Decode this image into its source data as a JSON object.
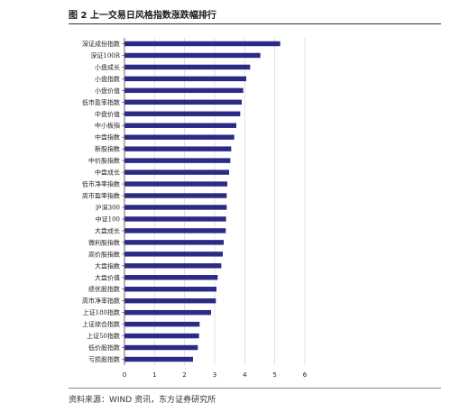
{
  "figure": {
    "title": "图 2 上一交易日风格指数涨跌幅排行",
    "source": "资料来源：WIND 资讯，东方证券研究所"
  },
  "colors": {
    "bar": "#2b2b85",
    "grid": "#d0d0d0"
  },
  "chart_data": {
    "type": "bar",
    "orientation": "horizontal",
    "title": "",
    "xlabel": "",
    "ylabel": "",
    "xlim": [
      0,
      6
    ],
    "xticks": [
      0,
      1,
      2,
      3,
      4,
      5,
      6
    ],
    "grid": "vertical",
    "categories": [
      "深证成份指数",
      "深证100R",
      "小盘成长",
      "小盘指数",
      "小盘价值",
      "低市盈率指数",
      "中盘价值",
      "中小板指",
      "中盘指数",
      "新股指数",
      "中价股指数",
      "中盘成长",
      "低市净率指数",
      "高市盈率指数",
      "沪深300",
      "中证100",
      "大盘成长",
      "微利股指数",
      "高价股指数",
      "大盘指数",
      "大盘价值",
      "绩优股指数",
      "高市净率指数",
      "上证180指数",
      "上证综合指数",
      "上证50指数",
      "低价股指数",
      "亏损股指数"
    ],
    "values": [
      5.18,
      4.52,
      4.18,
      4.05,
      3.95,
      3.9,
      3.85,
      3.72,
      3.65,
      3.55,
      3.52,
      3.48,
      3.42,
      3.4,
      3.4,
      3.38,
      3.37,
      3.3,
      3.27,
      3.22,
      3.1,
      3.06,
      3.04,
      2.88,
      2.5,
      2.48,
      2.44,
      2.28
    ]
  }
}
